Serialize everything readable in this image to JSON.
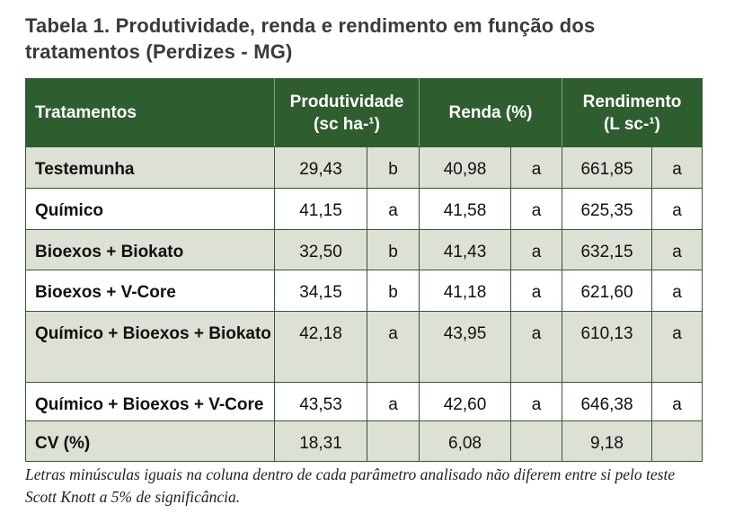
{
  "title": "Tabela 1. Produtividade, renda e rendimento em função dos tratamentos (Perdizes - MG)",
  "table": {
    "headers": [
      [
        "Tratamentos"
      ],
      [
        "Produtividade",
        "(sc ha-¹)"
      ],
      [
        "Renda (%)"
      ],
      [
        "Rendimento",
        "(L sc-¹)"
      ]
    ],
    "rows": [
      [
        "Testemunha",
        "29,43",
        "b",
        "40,98",
        "a",
        "661,85",
        "a"
      ],
      [
        "Químico",
        "41,15",
        "a",
        "41,58",
        "a",
        "625,35",
        "a"
      ],
      [
        "Bioexos + Biokato",
        "32,50",
        "b",
        "41,43",
        "a",
        "632,15",
        "a"
      ],
      [
        "Bioexos + V-Core",
        "34,15",
        "b",
        "41,18",
        "a",
        "621,60",
        "a"
      ],
      [
        "Químico + Bioexos + Biokato",
        "42,18",
        "a",
        "43,95",
        "a",
        "610,13",
        "a"
      ],
      [
        "Químico + Bioexos + V-Core",
        "43,53",
        "a",
        "42,60",
        "a",
        "646,38",
        "a"
      ],
      [
        "CV (%)",
        "18,31",
        "6,08",
        "9,18"
      ]
    ]
  },
  "footnote": "Letras minúsculas iguais na coluna dentro de cada parâmetro analisado não diferem entre si pelo teste Scott Knott a 5% de significância."
}
